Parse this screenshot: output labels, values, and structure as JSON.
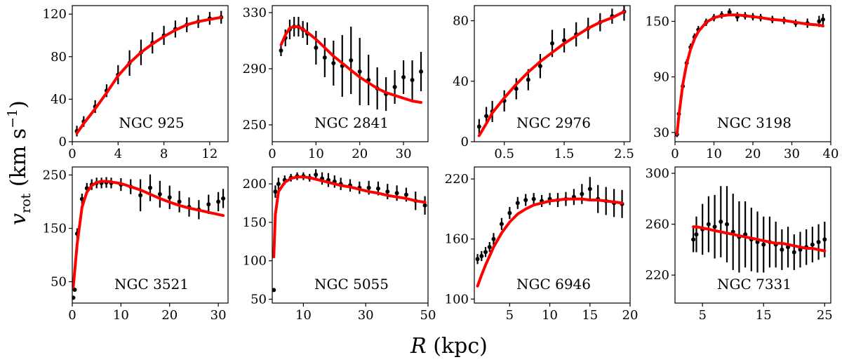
{
  "figure": {
    "xlabel_symbol": "R",
    "xlabel_unit": " (kpc)",
    "ylabel_symbol": "v",
    "ylabel_subscript": "rot",
    "ylabel_unit_open": " (km s",
    "ylabel_unit_exp": "−1",
    "ylabel_unit_close": ")"
  },
  "colors": {
    "fit": "#ff0000",
    "data": "#000000",
    "axes": "#000000",
    "background": "#ffffff"
  },
  "chart_data": [
    {
      "type": "line",
      "title": "NGC 925",
      "xlim": [
        0,
        13.6
      ],
      "ylim": [
        0,
        128
      ],
      "xticks": [
        0,
        4,
        8,
        12
      ],
      "yticks": [
        0,
        40,
        80,
        120
      ],
      "observed": {
        "x": [
          0.4,
          1,
          2,
          3,
          4,
          5,
          6,
          7,
          8,
          9,
          10,
          11,
          12,
          13
        ],
        "y": [
          10,
          19,
          33,
          48,
          63,
          74,
          84,
          93,
          100,
          106,
          110,
          113,
          116,
          117
        ],
        "err": [
          5,
          5,
          6,
          6,
          9,
          12,
          12,
          10,
          9,
          8,
          7,
          6,
          6,
          6
        ]
      },
      "model": {
        "x": [
          0.4,
          1,
          2,
          3,
          4,
          5,
          6,
          7,
          8,
          9,
          10,
          11,
          12,
          13
        ],
        "y": [
          8,
          17,
          31,
          46,
          62,
          74,
          84,
          92,
          99,
          105,
          110,
          113,
          115,
          117
        ]
      }
    },
    {
      "type": "line",
      "title": "NGC 2841",
      "xlim": [
        0,
        35.6
      ],
      "ylim": [
        238,
        335
      ],
      "xticks": [
        0,
        10,
        20,
        30
      ],
      "yticks": [
        250,
        290,
        330
      ],
      "observed": {
        "x": [
          2,
          3,
          4,
          5,
          6,
          7,
          8,
          10,
          12,
          14,
          16,
          18,
          20,
          22,
          24,
          26,
          28,
          30,
          32,
          34
        ],
        "y": [
          303,
          312,
          318,
          320,
          320,
          318,
          315,
          305,
          298,
          294,
          292,
          296,
          288,
          282,
          276,
          272,
          277,
          284,
          282,
          288
        ],
        "err": [
          4,
          6,
          7,
          7,
          7,
          6,
          8,
          12,
          14,
          16,
          22,
          24,
          24,
          18,
          15,
          12,
          12,
          12,
          14,
          14
        ]
      },
      "model": {
        "x": [
          2,
          3,
          4,
          5,
          6,
          7,
          8,
          10,
          12,
          14,
          16,
          18,
          20,
          22,
          24,
          26,
          28,
          30,
          32,
          34
        ],
        "y": [
          307,
          314,
          319,
          320,
          320,
          318,
          316,
          311,
          305,
          299,
          294,
          289,
          284,
          280,
          276,
          273,
          271,
          269,
          267,
          266
        ]
      }
    },
    {
      "type": "line",
      "title": "NGC 2976",
      "xlim": [
        0.0,
        2.6
      ],
      "ylim": [
        0,
        90
      ],
      "xticks": [
        0.5,
        1.5,
        2.5
      ],
      "yticks": [
        0,
        40,
        80
      ],
      "observed": {
        "x": [
          0.08,
          0.2,
          0.3,
          0.5,
          0.7,
          0.9,
          1.1,
          1.3,
          1.5,
          1.7,
          1.9,
          2.1,
          2.3,
          2.5
        ],
        "y": [
          10,
          17,
          20,
          27,
          35,
          41,
          50,
          65,
          67,
          71,
          75,
          79,
          83,
          86
        ],
        "err": [
          5,
          6,
          7,
          7,
          7,
          7,
          8,
          9,
          8,
          8,
          7,
          6,
          5,
          6
        ]
      },
      "model": {
        "x": [
          0.08,
          0.2,
          0.3,
          0.5,
          0.7,
          0.9,
          1.1,
          1.3,
          1.5,
          1.7,
          1.9,
          2.1,
          2.3,
          2.5
        ],
        "y": [
          4,
          12,
          19,
          29,
          38,
          46,
          53,
          59,
          65,
          70,
          75,
          79,
          82,
          86
        ]
      }
    },
    {
      "type": "line",
      "title": "NGC 3198",
      "xlim": [
        0,
        40
      ],
      "ylim": [
        20,
        167
      ],
      "xticks": [
        0,
        10,
        20,
        30,
        40
      ],
      "yticks": [
        30,
        90,
        150
      ],
      "observed": {
        "x": [
          0.5,
          1,
          2,
          3,
          4,
          5,
          6,
          8,
          10,
          12,
          14,
          16,
          18,
          20,
          22,
          25,
          28,
          31,
          34,
          37,
          38
        ],
        "y": [
          28,
          50,
          80,
          105,
          122,
          133,
          141,
          149,
          154,
          157,
          160,
          155,
          156,
          155,
          154,
          152,
          151,
          148,
          148,
          150,
          152
        ],
        "err": [
          3,
          4,
          4,
          4,
          4,
          4,
          4,
          4,
          4,
          4,
          4,
          5,
          4,
          4,
          4,
          4,
          4,
          4,
          5,
          6,
          6
        ]
      },
      "model": {
        "x": [
          0.5,
          1,
          2,
          3,
          4,
          5,
          6,
          8,
          10,
          12,
          14,
          16,
          18,
          20,
          22,
          25,
          28,
          31,
          34,
          37,
          38
        ],
        "y": [
          28,
          48,
          82,
          104,
          120,
          131,
          139,
          149,
          154,
          156,
          157,
          157,
          156,
          155,
          154,
          152,
          151,
          149,
          147,
          146,
          145
        ]
      }
    },
    {
      "type": "line",
      "title": "NGC 3521",
      "xlim": [
        0,
        32
      ],
      "ylim": [
        10,
        265
      ],
      "xticks": [
        0,
        10,
        20,
        30
      ],
      "yticks": [
        50,
        150,
        250
      ],
      "observed": {
        "x": [
          0.2,
          0.5,
          1,
          2,
          3,
          4,
          5,
          6,
          7,
          8,
          10,
          12,
          14,
          16,
          18,
          20,
          22,
          24,
          26,
          28,
          30,
          31
        ],
        "y": [
          20,
          35,
          140,
          205,
          225,
          232,
          235,
          235,
          236,
          235,
          232,
          228,
          212,
          226,
          214,
          208,
          200,
          190,
          185,
          195,
          200,
          206
        ],
        "err": [
          2,
          3,
          10,
          10,
          10,
          10,
          10,
          10,
          10,
          10,
          12,
          14,
          30,
          25,
          25,
          22,
          20,
          18,
          18,
          18,
          18,
          18
        ]
      },
      "model": {
        "x": [
          0.2,
          0.5,
          1,
          2,
          3,
          4,
          5,
          6,
          7,
          8,
          10,
          12,
          14,
          16,
          18,
          20,
          22,
          24,
          26,
          28,
          30,
          31
        ],
        "y": [
          40,
          70,
          120,
          190,
          218,
          230,
          236,
          238,
          238,
          237,
          234,
          228,
          222,
          214,
          206,
          199,
          193,
          188,
          184,
          180,
          176,
          174
        ]
      }
    },
    {
      "type": "line",
      "title": "NGC 5055",
      "xlim": [
        0,
        50
      ],
      "ylim": [
        45,
        222
      ],
      "xticks": [
        10,
        30,
        50
      ],
      "yticks": [
        50,
        100,
        150,
        200
      ],
      "observed": {
        "x": [
          0.5,
          1,
          2,
          4,
          6,
          8,
          10,
          12,
          14,
          16,
          18,
          20,
          22,
          25,
          28,
          31,
          34,
          37,
          40,
          43,
          46,
          49
        ],
        "y": [
          62,
          190,
          200,
          205,
          208,
          210,
          210,
          208,
          212,
          207,
          205,
          203,
          200,
          198,
          195,
          195,
          194,
          190,
          188,
          186,
          178,
          172
        ],
        "err": [
          2,
          8,
          8,
          6,
          5,
          5,
          5,
          5,
          7,
          8,
          9,
          8,
          8,
          8,
          8,
          9,
          9,
          10,
          10,
          9,
          12,
          12
        ]
      },
      "model": {
        "x": [
          0.5,
          1,
          2,
          4,
          6,
          8,
          10,
          12,
          14,
          16,
          18,
          20,
          22,
          25,
          28,
          31,
          34,
          37,
          40,
          43,
          46,
          49
        ],
        "y": [
          105,
          160,
          190,
          202,
          207,
          209,
          209,
          208,
          206,
          204,
          202,
          200,
          198,
          196,
          193,
          190,
          188,
          185,
          183,
          181,
          178,
          176
        ]
      }
    },
    {
      "type": "line",
      "title": "NGC 6946",
      "xlim": [
        0.6,
        20
      ],
      "ylim": [
        96,
        232
      ],
      "xticks": [
        5,
        10,
        15,
        20
      ],
      "yticks": [
        100,
        160,
        220
      ],
      "observed": {
        "x": [
          1,
          1.5,
          2,
          2.5,
          3,
          4,
          5,
          6,
          7,
          8,
          9,
          10,
          11,
          12,
          13,
          14,
          15,
          16,
          17,
          18,
          19
        ],
        "y": [
          140,
          143,
          147,
          152,
          160,
          175,
          186,
          196,
          199,
          200,
          198,
          200,
          199,
          200,
          202,
          205,
          210,
          200,
          198,
          196,
          195
        ],
        "err": [
          5,
          5,
          5,
          5,
          6,
          6,
          6,
          6,
          6,
          6,
          6,
          6,
          7,
          7,
          8,
          10,
          12,
          14,
          14,
          14,
          14
        ]
      },
      "model": {
        "x": [
          1,
          1.5,
          2,
          2.5,
          3,
          4,
          5,
          6,
          7,
          8,
          9,
          10,
          11,
          12,
          13,
          14,
          15,
          16,
          17,
          18,
          19
        ],
        "y": [
          113,
          124,
          134,
          143,
          152,
          166,
          177,
          185,
          190,
          194,
          196,
          198,
          199,
          200,
          200,
          200,
          199,
          199,
          198,
          197,
          196
        ]
      }
    },
    {
      "type": "line",
      "title": "NGC 7331",
      "xlim": [
        0.5,
        26
      ],
      "ylim": [
        198,
        305
      ],
      "xticks": [
        5,
        15,
        25
      ],
      "yticks": [
        220,
        260,
        300
      ],
      "observed": {
        "x": [
          3.5,
          4,
          5,
          6,
          7,
          8,
          9,
          10,
          11,
          12,
          13,
          14,
          15,
          16,
          17,
          18,
          19,
          20,
          21,
          22,
          23,
          24,
          25
        ],
        "y": [
          248,
          252,
          256,
          260,
          258,
          262,
          260,
          254,
          250,
          252,
          248,
          246,
          244,
          246,
          244,
          240,
          242,
          238,
          240,
          242,
          244,
          246,
          248
        ],
        "err": [
          10,
          14,
          20,
          22,
          25,
          28,
          30,
          30,
          28,
          26,
          25,
          24,
          22,
          20,
          18,
          16,
          16,
          14,
          14,
          14,
          14,
          14,
          14
        ]
      },
      "model": {
        "x": [
          3.5,
          4,
          5,
          6,
          7,
          8,
          9,
          10,
          11,
          12,
          13,
          14,
          15,
          16,
          17,
          18,
          19,
          20,
          21,
          22,
          23,
          24,
          25
        ],
        "y": [
          258,
          258,
          257,
          256,
          255,
          254,
          253,
          252,
          251,
          250,
          249,
          248,
          247,
          246,
          245,
          245,
          244,
          243,
          242,
          241,
          241,
          240,
          239
        ]
      }
    }
  ]
}
